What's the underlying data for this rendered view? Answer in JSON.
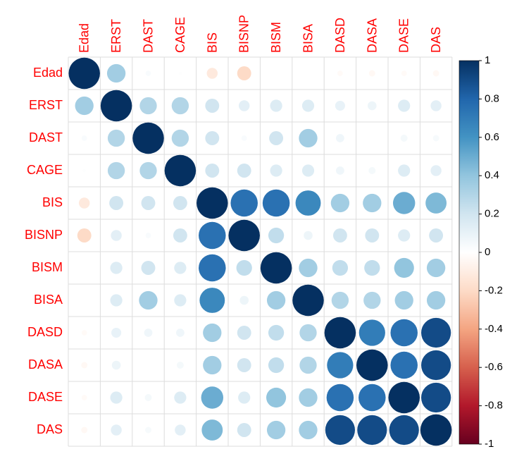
{
  "chart_data": {
    "type": "correlation",
    "variables": [
      "Edad",
      "ERST",
      "DAST",
      "CAGE",
      "BIS",
      "BISNP",
      "BISM",
      "BISA",
      "DASD",
      "DASA",
      "DASE",
      "DAS"
    ],
    "matrix": [
      [
        1,
        0.35,
        0.03,
        0.01,
        -0.12,
        -0.2,
        0,
        0,
        -0.03,
        -0.04,
        -0.03,
        -0.04
      ],
      [
        0.35,
        1,
        0.3,
        0.3,
        0.2,
        0.12,
        0.15,
        0.15,
        0.1,
        0.08,
        0.15,
        0.12
      ],
      [
        0.03,
        0.3,
        1,
        0.3,
        0.2,
        0.03,
        0.2,
        0.35,
        0.07,
        0,
        0.05,
        0.04
      ],
      [
        0.01,
        0.3,
        0.3,
        1,
        0.2,
        0.2,
        0.15,
        0.15,
        0.07,
        0.05,
        0.15,
        0.12
      ],
      [
        -0.12,
        0.2,
        0.2,
        0.2,
        1,
        0.75,
        0.75,
        0.65,
        0.35,
        0.35,
        0.5,
        0.45
      ],
      [
        -0.2,
        0.12,
        0.03,
        0.2,
        0.75,
        1,
        0.25,
        0.08,
        0.2,
        0.2,
        0.15,
        0.2
      ],
      [
        0,
        0.15,
        0.2,
        0.15,
        0.75,
        0.25,
        1,
        0.35,
        0.25,
        0.25,
        0.4,
        0.35
      ],
      [
        0,
        0.15,
        0.35,
        0.15,
        0.65,
        0.08,
        0.35,
        1,
        0.3,
        0.3,
        0.35,
        0.35
      ],
      [
        -0.03,
        0.1,
        0.07,
        0.07,
        0.35,
        0.2,
        0.25,
        0.3,
        1,
        0.7,
        0.75,
        0.9
      ],
      [
        -0.04,
        0.08,
        0,
        0.05,
        0.35,
        0.2,
        0.25,
        0.3,
        0.7,
        1,
        0.75,
        0.9
      ],
      [
        -0.03,
        0.15,
        0.05,
        0.15,
        0.5,
        0.15,
        0.4,
        0.35,
        0.75,
        0.75,
        1,
        0.9
      ],
      [
        -0.04,
        0.12,
        0.04,
        0.12,
        0.45,
        0.2,
        0.35,
        0.35,
        0.9,
        0.9,
        0.9,
        1
      ]
    ],
    "colors": [
      "#67001F",
      "#B2182B",
      "#D6604D",
      "#F4A582",
      "#FDDBC7",
      "#FFFFFF",
      "#D1E5F0",
      "#92C5DE",
      "#4393C3",
      "#2166AC",
      "#053061"
    ],
    "label_color": "#FF0000",
    "colorbar_lim": [
      -1,
      1
    ],
    "colorbar_ticks": [
      -1,
      -0.8,
      -0.6,
      -0.4,
      -0.2,
      0,
      0.2,
      0.4,
      0.6,
      0.8,
      1
    ]
  }
}
